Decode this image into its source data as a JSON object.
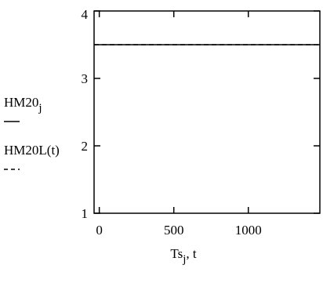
{
  "chart_data": {
    "type": "line",
    "x_label": {
      "main": "Ts",
      "sub": "j",
      "rest": ", t"
    },
    "x": [
      -35,
      1480
    ],
    "series": [
      {
        "name": "HM20",
        "name_sub": "j",
        "color": "#000000",
        "dash": false,
        "values": [
          3.5,
          3.5
        ]
      },
      {
        "name": "HM20L(t)",
        "color": "#000000",
        "dash": true,
        "values": [
          3.5,
          3.5
        ]
      }
    ],
    "xlim": [
      -35,
      1480
    ],
    "xticks": [
      0,
      500,
      1000
    ],
    "ylim": [
      1,
      4
    ],
    "yticks": [
      1,
      2,
      3,
      4
    ]
  }
}
